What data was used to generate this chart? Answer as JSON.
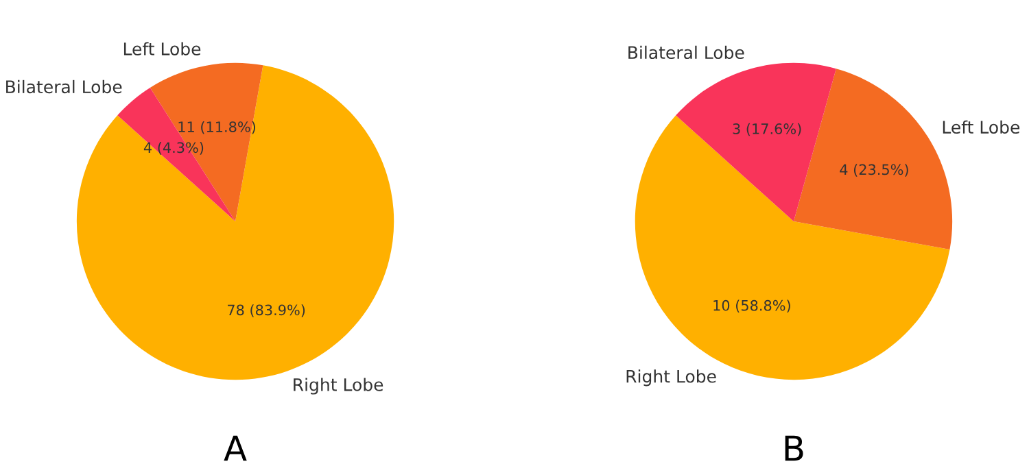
{
  "chart_data": [
    {
      "type": "pie",
      "xlabel": "A",
      "categories": [
        "Right Lobe",
        "Left Lobe",
        "Bilateral Lobe"
      ],
      "values": [
        78,
        11,
        4
      ],
      "colors": [
        "#ffb000",
        "#f46b22",
        "#f9345a"
      ],
      "value_labels": [
        "78 (83.9%)",
        "11 (11.8%)",
        "4 (4.3%)"
      ],
      "legend": false
    },
    {
      "type": "pie",
      "xlabel": "B",
      "categories": [
        "Right Lobe",
        "Left Lobe",
        "Bilateral Lobe"
      ],
      "values": [
        10,
        4,
        3
      ],
      "colors": [
        "#ffb000",
        "#f46b22",
        "#f9345a"
      ],
      "value_labels": [
        "10 (58.8%)",
        "4 (23.5%)",
        "3 (17.6%)"
      ],
      "legend": false
    }
  ]
}
